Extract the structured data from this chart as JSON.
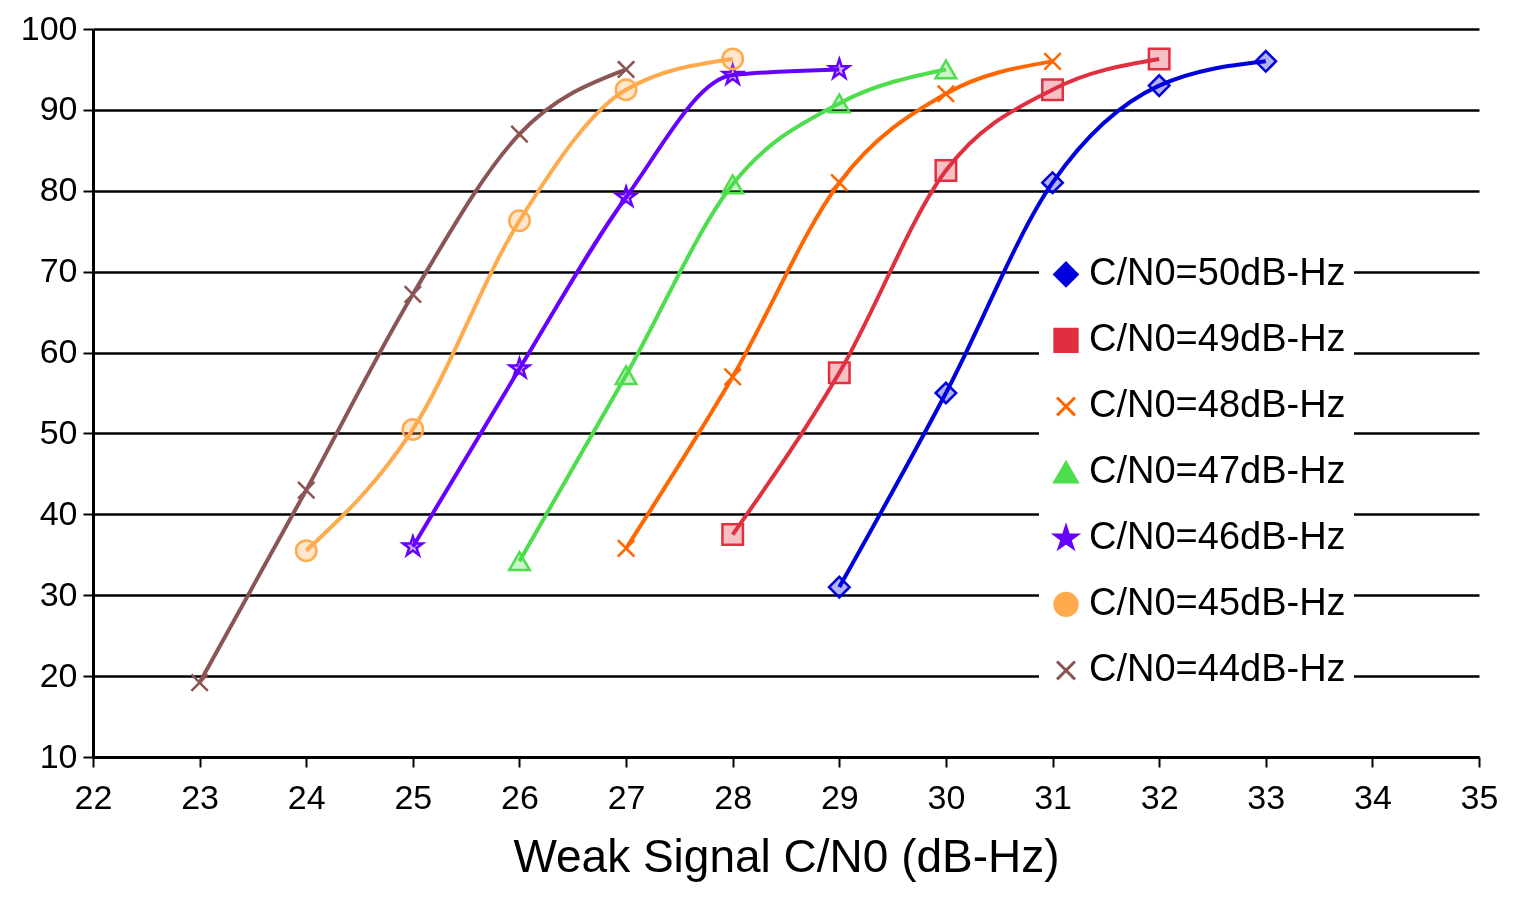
{
  "chart_data": {
    "type": "line",
    "xlabel": "Weak Signal C/N0 (dB-Hz)",
    "xlim": [
      22,
      35
    ],
    "xticks": [
      22,
      23,
      24,
      25,
      26,
      27,
      28,
      29,
      30,
      31,
      32,
      33,
      34,
      35
    ],
    "ylim": [
      10,
      100
    ],
    "yticks": [
      10,
      20,
      30,
      40,
      50,
      60,
      70,
      80,
      90,
      100
    ],
    "grid": "y",
    "legend": "right",
    "series": [
      {
        "name": "C/N0=50dB-Hz",
        "color": "#0000dd",
        "marker": "diamond",
        "x": [
          29,
          30,
          31,
          32,
          33
        ],
        "values": [
          31,
          55,
          81,
          93,
          96
        ]
      },
      {
        "name": "C/N0=49dB-Hz",
        "color": "#e03040",
        "marker": "square",
        "x": [
          28,
          29,
          30,
          31,
          32
        ],
        "values": [
          37.5,
          57.5,
          82.5,
          92.5,
          96.3
        ]
      },
      {
        "name": "C/N0=48dB-Hz",
        "color": "#ff6600",
        "marker": "cross",
        "x": [
          27,
          28,
          29,
          30,
          31
        ],
        "values": [
          35.8,
          57,
          81,
          92,
          96
        ]
      },
      {
        "name": "C/N0=47dB-Hz",
        "color": "#4ddd4d",
        "marker": "triangle",
        "x": [
          26,
          27,
          28,
          29,
          30
        ],
        "values": [
          34.2,
          57.2,
          80.8,
          90.8,
          95
        ]
      },
      {
        "name": "C/N0=46dB-Hz",
        "color": "#6600ff",
        "marker": "star",
        "x": [
          25,
          26,
          27,
          28,
          29
        ],
        "values": [
          36,
          58,
          79.2,
          94.3,
          95
        ]
      },
      {
        "name": "C/N0=45dB-Hz",
        "color": "#ffaa4d",
        "marker": "circle",
        "x": [
          24,
          25,
          26,
          27,
          28
        ],
        "values": [
          35.5,
          50.5,
          76.3,
          92.5,
          96.3
        ]
      },
      {
        "name": "C/N0=44dB-Hz",
        "color": "#8b5555",
        "marker": "cross",
        "x": [
          23,
          24,
          25,
          26,
          27
        ],
        "values": [
          19.2,
          43,
          67.2,
          87,
          95
        ]
      }
    ]
  }
}
